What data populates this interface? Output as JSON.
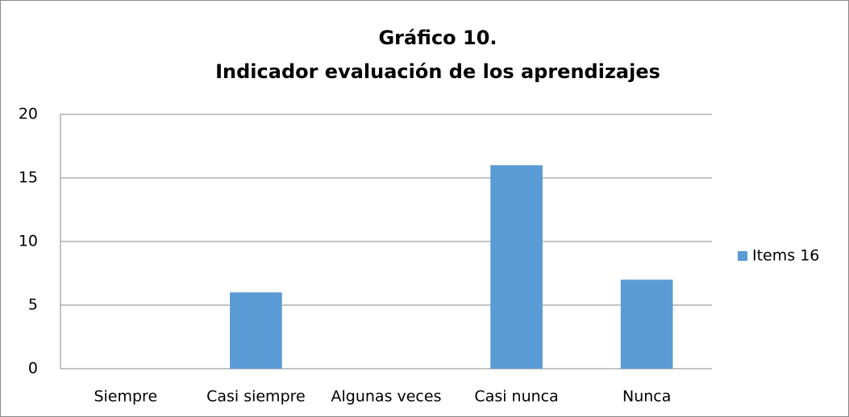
{
  "chart_data": {
    "type": "bar",
    "title": [
      "Gráfico 10.",
      "Indicador evaluación de los aprendizajes"
    ],
    "categories": [
      "Siempre",
      "Casi siempre",
      "Algunas veces",
      "Casi nunca",
      "Nunca"
    ],
    "series": [
      {
        "name": "Items 16",
        "color": "#5b9bd5",
        "values": [
          0,
          6,
          0,
          16,
          7
        ]
      }
    ],
    "ylim": [
      0,
      20
    ],
    "yticks": [
      0,
      5,
      10,
      15,
      20
    ],
    "grid": true,
    "legend": "right"
  }
}
